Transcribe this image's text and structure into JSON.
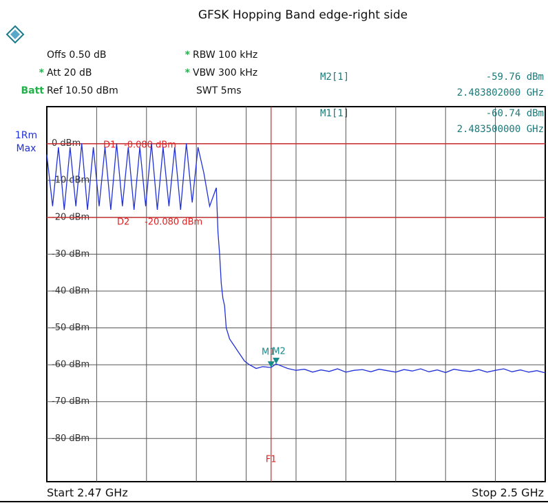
{
  "chart_data": {
    "type": "line",
    "title": "GFSK Hopping Band edge-right side",
    "settings": [
      {
        "text": "Offs 0.50 dB"
      },
      {
        "mark": "*",
        "text": "RBW 100 kHz"
      },
      {
        "mark": "*",
        "text": "Att 20 dB"
      },
      {
        "mark": "*",
        "text": "VBW 300 kHz"
      },
      {
        "mark": "Batt",
        "text": "Ref 10.50 dBm"
      },
      {
        "text": "SWT 5ms"
      }
    ],
    "readouts": [
      {
        "name": "M2[1]",
        "level": "-59.76 dBm",
        "freq": "2.483802000 GHz"
      },
      {
        "name": "M1[1]",
        "level": "-60.74 dBm",
        "freq": "2.483500000 GHz"
      }
    ],
    "trace_label": [
      "1Rm",
      "Max"
    ],
    "start_label": "Start 2.47 GHz",
    "stop_label": "Stop 2.5 GHz",
    "xlim": [
      2.47,
      2.5
    ],
    "ylim": [
      -91.7,
      10
    ],
    "yticks": [
      {
        "value": 0,
        "label": "0 dBm"
      },
      {
        "value": -10,
        "label": "-10 dBm"
      },
      {
        "value": -20,
        "label": "-20 dBm"
      },
      {
        "value": -30,
        "label": "-30 dBm"
      },
      {
        "value": -40,
        "label": "-40 dBm"
      },
      {
        "value": -50,
        "label": "-50 dBm"
      },
      {
        "value": -60,
        "label": "-60 dBm"
      },
      {
        "value": -70,
        "label": "-70 dBm"
      },
      {
        "value": -80,
        "label": "-80 dBm"
      }
    ],
    "grid": true,
    "color": "#2030d8",
    "x": [
      2.47,
      2.47035,
      2.4707,
      2.47105,
      2.4714,
      2.47175,
      2.4721,
      2.47245,
      2.4728,
      2.47315,
      2.4735,
      2.47385,
      2.4742,
      2.47455,
      2.4749,
      2.47525,
      2.4756,
      2.47595,
      2.4763,
      2.47665,
      2.477,
      2.47735,
      2.4777,
      2.47805,
      2.4784,
      2.47875,
      2.4791,
      2.47945,
      2.4798,
      2.4802,
      2.4803,
      2.4804,
      2.4805,
      2.4806,
      2.4807,
      2.4808,
      2.481,
      2.4813,
      2.4816,
      2.4819,
      2.4822,
      2.4826,
      2.483,
      2.4835,
      2.4838,
      2.4845,
      2.485,
      2.4855,
      2.486,
      2.4865,
      2.487,
      2.4875,
      2.488,
      2.4885,
      2.489,
      2.4895,
      2.49,
      2.4905,
      2.491,
      2.4915,
      2.492,
      2.4925,
      2.493,
      2.4935,
      2.494,
      2.4945,
      2.495,
      2.4955,
      2.496,
      2.4965,
      2.497,
      2.4975,
      2.498,
      2.4985,
      2.499,
      2.4995,
      2.5
    ],
    "values": [
      -3,
      -17,
      -1,
      -18,
      -1,
      -17,
      0,
      -18,
      -1,
      -17,
      -1,
      -18,
      0,
      -17,
      -1,
      -18,
      -1,
      -17,
      0,
      -18,
      -1,
      -17,
      -1,
      -18,
      0,
      -16,
      -1,
      -8,
      -17,
      -12,
      -24,
      -30,
      -38,
      -42,
      -44,
      -50,
      -53,
      -55,
      -57,
      -59,
      -60,
      -61,
      -60.5,
      -60.74,
      -59.76,
      -61,
      -61.5,
      -61.2,
      -62,
      -61.4,
      -61.8,
      -61.1,
      -62,
      -61.5,
      -61.3,
      -61.9,
      -61.2,
      -61.6,
      -62,
      -61.3,
      -61.7,
      -61.1,
      -61.9,
      -61.4,
      -62.1,
      -61.2,
      -61.6,
      -61.8,
      -61.3,
      -62,
      -61.5,
      -61.1,
      -61.9,
      -61.4,
      -62,
      -61.6,
      -62.2
    ],
    "lines": [
      {
        "name": "D1",
        "value": -0.08,
        "label": "-0.080 dBm"
      },
      {
        "name": "D2",
        "value": -20.08,
        "label": "-20.080 dBm"
      }
    ],
    "frequency_line": {
      "name": "F1",
      "value": 2.4835
    },
    "markers": [
      {
        "name": "M1",
        "x": 2.4835,
        "y": -60.74
      },
      {
        "name": "M2",
        "x": 2.483802,
        "y": -59.76
      }
    ]
  }
}
